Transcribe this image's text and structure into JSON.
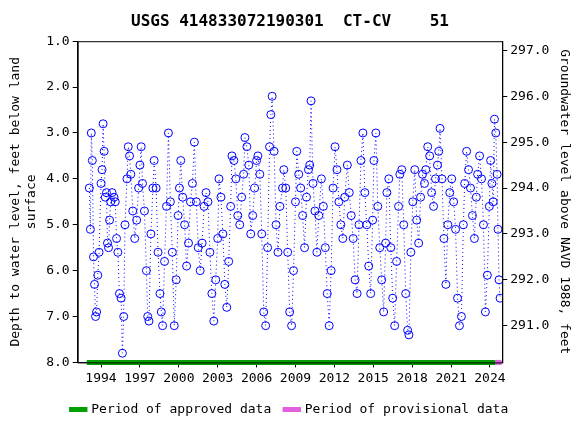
{
  "chart_data": {
    "type": "scatter",
    "title": "USGS 414833072190301  CT-CV    51",
    "y_label": [
      "Depth to water level, feet below land",
      "surface"
    ],
    "y2_label": "Groundwater level above NAVD 1988, feet",
    "marker": "circle",
    "line_style": "dotted",
    "color": "#0000ff",
    "grid": false,
    "legend": "bottom",
    "xlim": [
      1992.2,
      2024.95
    ],
    "xticks": [
      1994,
      1997,
      2000,
      2003,
      2006,
      2009,
      2012,
      2015,
      2018,
      2021,
      2024
    ],
    "ylim": [
      8,
      1
    ],
    "yticks": [
      {
        "value": 1,
        "label": "1.0"
      },
      {
        "value": 2,
        "label": "2.0"
      },
      {
        "value": 3,
        "label": "3.0"
      },
      {
        "value": 4,
        "label": "4.0"
      },
      {
        "value": 5,
        "label": "5.0"
      },
      {
        "value": 6,
        "label": "6.0"
      },
      {
        "value": 7,
        "label": "7.0"
      },
      {
        "value": 8,
        "label": "8.0"
      }
    ],
    "y2lim": [
      290.2,
      297.2
    ],
    "y2ticks": [
      {
        "value": 291,
        "label": "291.0"
      },
      {
        "value": 292,
        "label": "292.0"
      },
      {
        "value": 293,
        "label": "293.0"
      },
      {
        "value": 294,
        "label": "294.0"
      },
      {
        "value": 295,
        "label": "295.0"
      },
      {
        "value": 296,
        "label": "296.0"
      },
      {
        "value": 297,
        "label": "297.0"
      }
    ],
    "x": [
      1993.1,
      1993.18,
      1993.25,
      1993.33,
      1993.42,
      1993.5,
      1993.58,
      1993.66,
      1993.75,
      1993.85,
      1994.0,
      1994.08,
      1994.16,
      1994.24,
      1994.33,
      1994.42,
      1994.5,
      1994.58,
      1994.66,
      1994.75,
      1994.85,
      1995.0,
      1995.1,
      1995.2,
      1995.3,
      1995.42,
      1995.55,
      1995.65,
      1995.75,
      1995.85,
      1996.0,
      1996.1,
      1996.2,
      1996.3,
      1996.45,
      1996.6,
      1996.75,
      1996.9,
      1997.0,
      1997.1,
      1997.2,
      1997.35,
      1997.5,
      1997.6,
      1997.7,
      1997.85,
      1998.0,
      1998.1,
      1998.25,
      1998.4,
      1998.55,
      1998.65,
      1998.75,
      1998.9,
      1999.05,
      1999.2,
      1999.35,
      1999.5,
      1999.65,
      1999.8,
      1999.95,
      2000.05,
      2000.15,
      2000.3,
      2000.45,
      2000.6,
      2000.75,
      2000.9,
      2001.05,
      2001.2,
      2001.35,
      2001.5,
      2001.65,
      2001.8,
      2001.95,
      2002.1,
      2002.25,
      2002.4,
      2002.55,
      2002.7,
      2002.85,
      2003.0,
      2003.1,
      2003.25,
      2003.4,
      2003.55,
      2003.7,
      2003.85,
      2004.0,
      2004.1,
      2004.25,
      2004.4,
      2004.55,
      2004.7,
      2004.85,
      2005.0,
      2005.1,
      2005.25,
      2005.4,
      2005.55,
      2005.7,
      2005.85,
      2006.0,
      2006.1,
      2006.25,
      2006.4,
      2006.55,
      2006.7,
      2006.85,
      2007.0,
      2007.1,
      2007.2,
      2007.35,
      2007.5,
      2007.65,
      2007.8,
      2008.0,
      2008.1,
      2008.25,
      2008.4,
      2008.55,
      2008.7,
      2008.85,
      2009.0,
      2009.1,
      2009.25,
      2009.4,
      2009.55,
      2009.7,
      2009.85,
      2010.0,
      2010.1,
      2010.2,
      2010.35,
      2010.5,
      2010.65,
      2010.8,
      2011.0,
      2011.15,
      2011.3,
      2011.45,
      2011.6,
      2011.75,
      2011.9,
      2012.05,
      2012.2,
      2012.35,
      2012.5,
      2012.65,
      2012.8,
      2013.0,
      2013.15,
      2013.3,
      2013.45,
      2013.6,
      2013.75,
      2013.9,
      2014.05,
      2014.2,
      2014.35,
      2014.5,
      2014.65,
      2014.8,
      2014.95,
      2015.05,
      2015.2,
      2015.35,
      2015.5,
      2015.65,
      2015.8,
      2015.95,
      2016.05,
      2016.2,
      2016.35,
      2016.5,
      2016.65,
      2016.8,
      2016.95,
      2017.05,
      2017.2,
      2017.35,
      2017.5,
      2017.65,
      2017.75,
      2017.9,
      2018.05,
      2018.2,
      2018.35,
      2018.5,
      2018.65,
      2018.8,
      2018.95,
      2019.05,
      2019.2,
      2019.35,
      2019.5,
      2019.65,
      2019.8,
      2019.95,
      2020.05,
      2020.15,
      2020.3,
      2020.45,
      2020.6,
      2020.75,
      2020.9,
      2021.05,
      2021.2,
      2021.35,
      2021.5,
      2021.65,
      2021.8,
      2021.95,
      2022.05,
      2022.2,
      2022.35,
      2022.5,
      2022.65,
      2022.8,
      2022.95,
      2023.05,
      2023.2,
      2023.35,
      2023.5,
      2023.65,
      2023.8,
      2023.95,
      2024.05,
      2024.15,
      2024.25,
      2024.35,
      2024.45,
      2024.55,
      2024.62,
      2024.7,
      2024.78
    ],
    "values": [
      4.2,
      5.1,
      3.0,
      3.6,
      5.7,
      6.3,
      7.0,
      6.9,
      6.1,
      5.6,
      4.1,
      3.8,
      2.8,
      3.4,
      4.4,
      4.3,
      5.4,
      5.5,
      4.9,
      4.5,
      4.3,
      4.4,
      4.5,
      5.3,
      5.6,
      6.5,
      6.6,
      7.8,
      7.0,
      5.0,
      4.0,
      3.3,
      3.5,
      3.9,
      4.7,
      5.3,
      4.9,
      4.2,
      3.7,
      3.3,
      4.1,
      4.7,
      6.0,
      7.0,
      7.1,
      5.2,
      4.2,
      3.6,
      4.2,
      5.6,
      6.5,
      6.9,
      7.2,
      5.8,
      4.6,
      3.0,
      4.5,
      5.6,
      7.2,
      6.2,
      4.8,
      4.2,
      3.6,
      4.4,
      5.0,
      5.9,
      5.4,
      4.5,
      4.1,
      3.2,
      4.5,
      5.5,
      6.0,
      5.4,
      4.6,
      4.3,
      4.5,
      5.6,
      6.5,
      7.1,
      6.2,
      5.3,
      4.0,
      4.4,
      5.2,
      6.3,
      6.8,
      5.8,
      4.6,
      3.5,
      3.6,
      4.0,
      4.8,
      5.0,
      4.4,
      3.9,
      3.1,
      3.3,
      3.7,
      5.2,
      4.8,
      4.2,
      3.6,
      3.5,
      3.9,
      5.2,
      6.9,
      7.2,
      5.5,
      3.3,
      2.6,
      2.2,
      3.4,
      5.0,
      5.6,
      4.6,
      4.2,
      3.8,
      4.2,
      5.6,
      6.9,
      7.2,
      6.0,
      4.5,
      3.4,
      3.9,
      4.2,
      4.8,
      5.5,
      4.4,
      3.8,
      3.7,
      2.3,
      4.1,
      4.7,
      5.6,
      4.8,
      4.0,
      4.6,
      5.5,
      6.5,
      7.2,
      6.0,
      4.2,
      3.3,
      3.8,
      4.5,
      5.0,
      5.3,
      4.4,
      3.7,
      4.3,
      4.8,
      5.3,
      6.2,
      6.5,
      5.0,
      3.6,
      3.0,
      4.3,
      5.0,
      5.9,
      6.5,
      4.9,
      3.6,
      3.0,
      4.6,
      5.5,
      6.2,
      6.9,
      5.4,
      4.3,
      4.0,
      5.5,
      6.6,
      7.2,
      5.8,
      4.6,
      3.9,
      3.8,
      5.0,
      6.5,
      7.3,
      7.4,
      5.6,
      4.5,
      3.8,
      4.9,
      5.4,
      4.4,
      3.9,
      4.1,
      3.8,
      3.3,
      3.5,
      4.3,
      4.6,
      4.0,
      3.7,
      3.4,
      2.9,
      4.0,
      5.3,
      6.3,
      5.0,
      4.3,
      4.0,
      4.5,
      5.1,
      6.6,
      7.2,
      7.0,
      5.0,
      4.1,
      3.4,
      3.8,
      4.2,
      4.8,
      5.3,
      4.4,
      3.9,
      3.5,
      4.0,
      5.0,
      6.9,
      6.1,
      4.6,
      3.6,
      4.1,
      4.5,
      2.7,
      3.0,
      3.9,
      5.1,
      6.2,
      6.6
    ],
    "periods": [
      {
        "name": "Period of approved data",
        "color": "#00a000",
        "x": [
          1992.9,
          2024.4
        ]
      },
      {
        "name": "Period of provisional data",
        "color": "#e060e0",
        "x": [
          2024.4,
          2024.9
        ]
      }
    ]
  }
}
